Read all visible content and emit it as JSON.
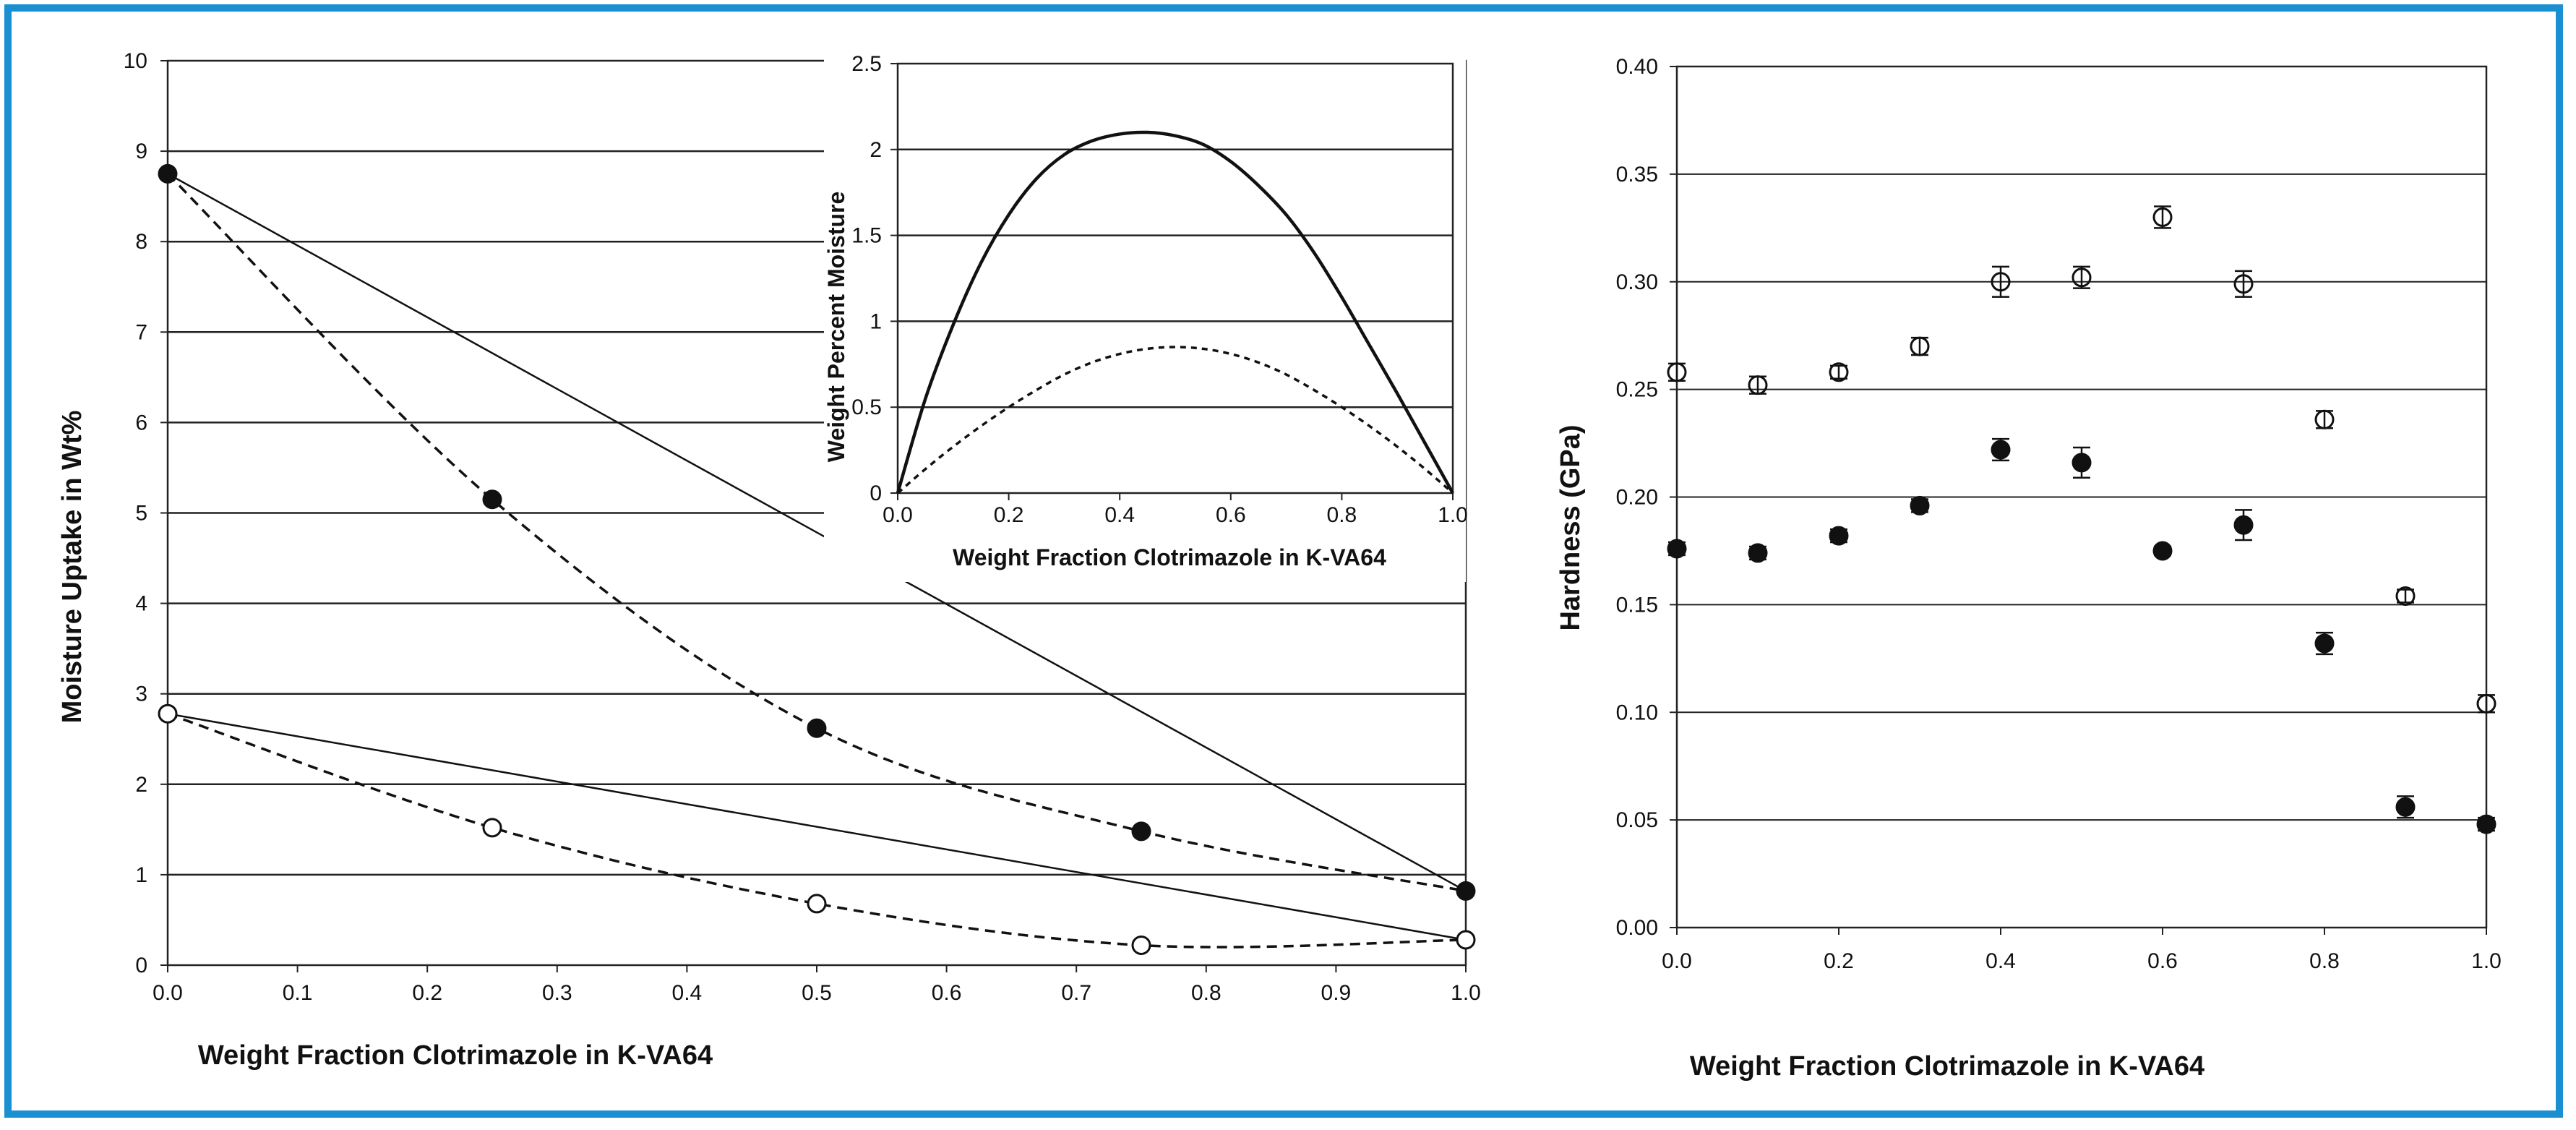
{
  "chart_data": [
    {
      "id": "moisture-main",
      "type": "scatter",
      "xlabel": "Weight Fraction Clotrimazole in K-VA64",
      "ylabel": "Moisture Uptake in Wt%",
      "xlim": [
        0,
        1
      ],
      "ylim": [
        0,
        10
      ],
      "xticks": [
        "0.0",
        "0.1",
        "0.2",
        "0.3",
        "0.4",
        "0.5",
        "0.6",
        "0.7",
        "0.8",
        "0.9",
        "1.0"
      ],
      "yticks": [
        "0",
        "1",
        "2",
        "3",
        "4",
        "5",
        "6",
        "7",
        "8",
        "9",
        "10"
      ],
      "grid": "horizontal",
      "series": [
        {
          "name": "filled",
          "marker": "filled-circle",
          "x": [
            0,
            0.25,
            0.5,
            0.75,
            1.0
          ],
          "y": [
            8.75,
            5.15,
            2.62,
            1.48,
            0.82
          ]
        },
        {
          "name": "open",
          "marker": "open-circle",
          "x": [
            0,
            0.25,
            0.5,
            0.75,
            1.0
          ],
          "y": [
            2.78,
            1.52,
            0.68,
            0.22,
            0.28
          ]
        }
      ],
      "ideal_lines": [
        {
          "name": "ideal-filled",
          "x": [
            0,
            1.0
          ],
          "y": [
            8.75,
            0.82
          ]
        },
        {
          "name": "ideal-open",
          "x": [
            0,
            1.0
          ],
          "y": [
            2.78,
            0.28
          ]
        }
      ]
    },
    {
      "id": "moisture-inset",
      "type": "line",
      "xlabel": "Weight Fraction Clotrimazole in K-VA64",
      "ylabel": "Weight Percent Moisture",
      "xlim": [
        0,
        1
      ],
      "ylim": [
        0,
        2.5
      ],
      "xticks": [
        "0.0",
        "0.2",
        "0.4",
        "0.6",
        "0.8",
        "1.0"
      ],
      "yticks": [
        "0",
        "0.5",
        "1",
        "1.5",
        "2",
        "2.5"
      ],
      "grid": "horizontal",
      "series": [
        {
          "name": "solid",
          "style": "solid",
          "x": [
            0,
            0.05,
            0.1,
            0.15,
            0.2,
            0.25,
            0.3,
            0.35,
            0.4,
            0.45,
            0.5,
            0.55,
            0.6,
            0.65,
            0.7,
            0.75,
            0.8,
            0.85,
            0.9,
            0.95,
            1.0
          ],
          "y": [
            0,
            0.55,
            0.98,
            1.34,
            1.62,
            1.83,
            1.97,
            2.05,
            2.09,
            2.1,
            2.08,
            2.03,
            1.93,
            1.79,
            1.62,
            1.4,
            1.14,
            0.86,
            0.58,
            0.29,
            0
          ]
        },
        {
          "name": "dotted",
          "style": "dotted",
          "x": [
            0,
            0.05,
            0.1,
            0.15,
            0.2,
            0.25,
            0.3,
            0.35,
            0.4,
            0.45,
            0.5,
            0.55,
            0.6,
            0.65,
            0.7,
            0.75,
            0.8,
            0.85,
            0.9,
            0.95,
            1.0
          ],
          "y": [
            0,
            0.14,
            0.27,
            0.39,
            0.5,
            0.6,
            0.69,
            0.76,
            0.81,
            0.84,
            0.85,
            0.84,
            0.81,
            0.76,
            0.69,
            0.6,
            0.5,
            0.39,
            0.27,
            0.14,
            0
          ]
        }
      ]
    },
    {
      "id": "hardness",
      "type": "scatter",
      "xlabel": "Weight Fraction Clotrimazole in K-VA64",
      "ylabel": "Hardness (GPa)",
      "xlim": [
        0,
        1
      ],
      "ylim": [
        0,
        0.4
      ],
      "xticks": [
        "0.0",
        "0.2",
        "0.4",
        "0.6",
        "0.8",
        "1.0"
      ],
      "yticks": [
        "0.00",
        "0.05",
        "0.10",
        "0.15",
        "0.20",
        "0.25",
        "0.30",
        "0.35",
        "0.40"
      ],
      "grid": "horizontal",
      "series": [
        {
          "name": "open",
          "marker": "open-circle",
          "x": [
            0,
            0.1,
            0.2,
            0.3,
            0.4,
            0.5,
            0.6,
            0.7,
            0.8,
            0.9,
            1.0
          ],
          "y": [
            0.258,
            0.252,
            0.258,
            0.27,
            0.3,
            0.302,
            0.33,
            0.299,
            0.236,
            0.154,
            0.104
          ],
          "err": [
            0.004,
            0.004,
            0.003,
            0.004,
            0.007,
            0.005,
            0.005,
            0.006,
            0.004,
            0.003,
            0.004
          ]
        },
        {
          "name": "filled",
          "marker": "filled-circle",
          "x": [
            0,
            0.1,
            0.2,
            0.3,
            0.4,
            0.5,
            0.6,
            0.7,
            0.8,
            0.9,
            1.0
          ],
          "y": [
            0.176,
            0.174,
            0.182,
            0.196,
            0.222,
            0.216,
            0.175,
            0.187,
            0.132,
            0.056,
            0.048
          ],
          "err": [
            0.003,
            0.003,
            0.003,
            0.003,
            0.005,
            0.007,
            0.002,
            0.007,
            0.005,
            0.005,
            0.003
          ]
        }
      ]
    }
  ]
}
